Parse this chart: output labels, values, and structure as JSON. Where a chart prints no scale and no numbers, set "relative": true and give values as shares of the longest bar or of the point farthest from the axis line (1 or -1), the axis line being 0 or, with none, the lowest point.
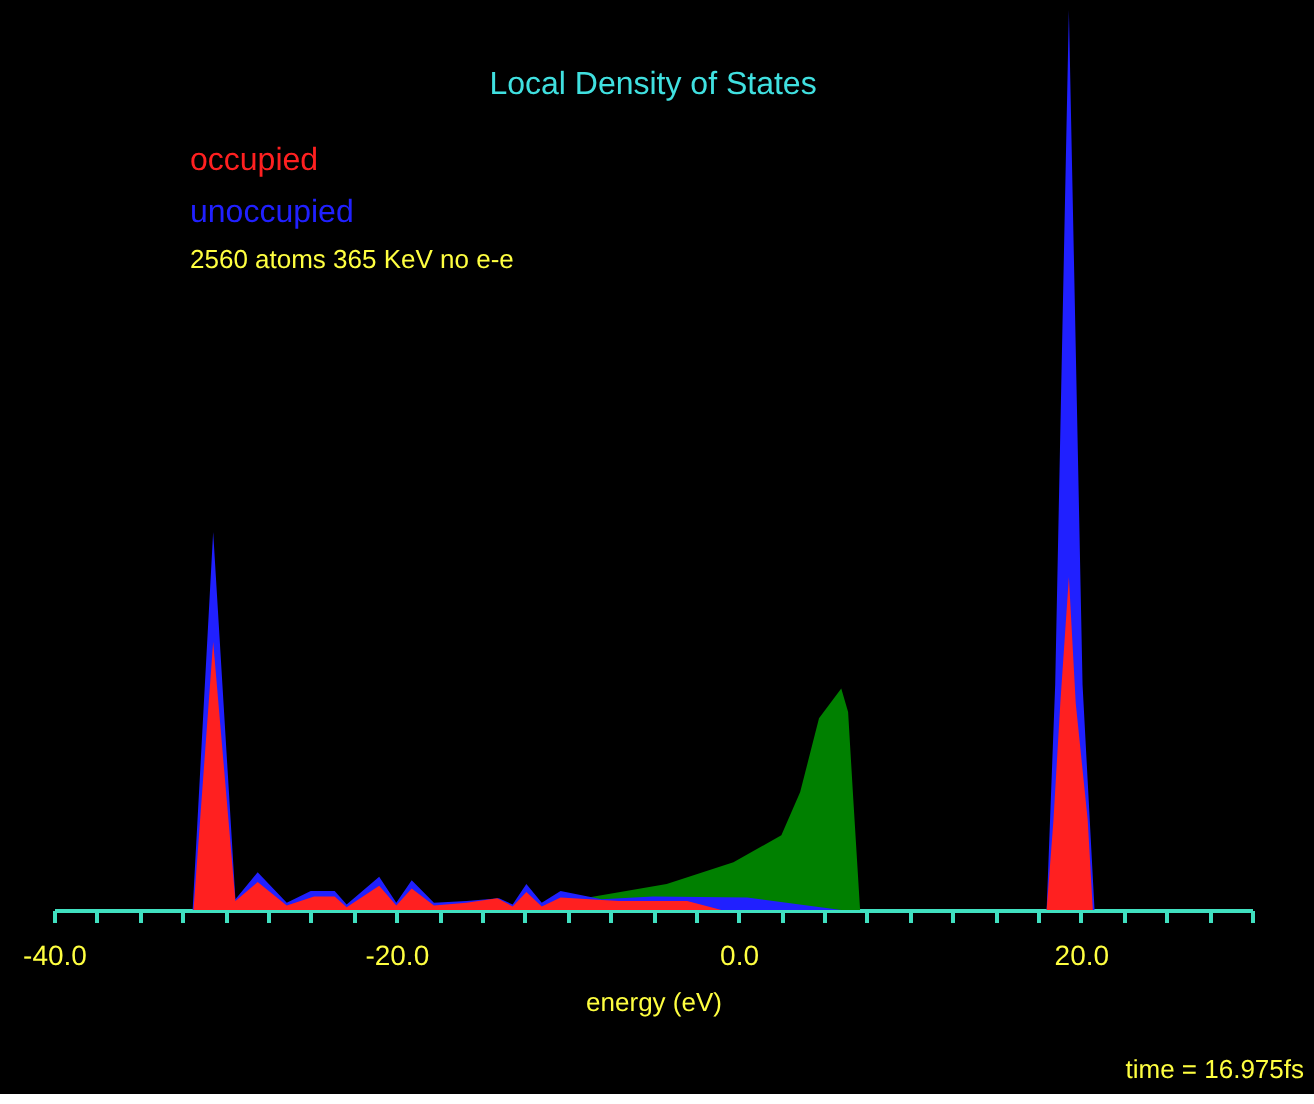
{
  "chart_data": {
    "type": "area",
    "title": "Local Density of States",
    "xlabel": "energy (eV)",
    "relative": true,
    "legend": "top left",
    "grid": false,
    "xlim": [
      -40,
      30
    ],
    "xticks": [
      {
        "value": -40,
        "label": "-40.0"
      },
      {
        "value": -37.5,
        "label": null
      },
      {
        "value": -35,
        "label": null
      },
      {
        "value": -32.5,
        "label": null
      },
      {
        "value": -30,
        "label": null
      },
      {
        "value": -27.5,
        "label": null
      },
      {
        "value": -25,
        "label": null
      },
      {
        "value": -22.5,
        "label": null
      },
      {
        "value": -20,
        "label": "-20.0"
      },
      {
        "value": -17.5,
        "label": null
      },
      {
        "value": -15,
        "label": null
      },
      {
        "value": -12.5,
        "label": null
      },
      {
        "value": -10,
        "label": null
      },
      {
        "value": -7.5,
        "label": null
      },
      {
        "value": -5,
        "label": null
      },
      {
        "value": -2.5,
        "label": null
      },
      {
        "value": 0,
        "label": "0.0"
      },
      {
        "value": 2.5,
        "label": null
      },
      {
        "value": 5,
        "label": null
      },
      {
        "value": 7.5,
        "label": null
      },
      {
        "value": 10,
        "label": null
      },
      {
        "value": 12.5,
        "label": null
      },
      {
        "value": 15,
        "label": null
      },
      {
        "value": 17.5,
        "label": null
      },
      {
        "value": 20,
        "label": "20.0"
      },
      {
        "value": 22.5,
        "label": null
      },
      {
        "value": 25,
        "label": null
      },
      {
        "value": 27.5,
        "label": null
      },
      {
        "value": 30,
        "label": null
      }
    ],
    "annotations": [
      "2560 atoms 365 KeV no e-e",
      "time = 16.975fs"
    ],
    "series": [
      {
        "color": "#008000",
        "x": [
          -13,
          -8.1,
          -4.2,
          -0.3,
          2.5,
          3.6,
          4.7,
          6.0,
          6.4,
          6.7,
          7.1
        ],
        "values": [
          0,
          0.016,
          0.029,
          0.053,
          0.083,
          0.131,
          0.213,
          0.246,
          0.22,
          0.124,
          0
        ]
      },
      {
        "name": "unoccupied",
        "color": "#2020ff",
        "x": [
          -31.9,
          -30.7,
          -29.4,
          -28.1,
          -26.4,
          -25,
          -23.6,
          -22.9,
          -21,
          -20,
          -19.1,
          -17.8,
          -15.9,
          -14,
          -13.2,
          -12.4,
          -11.5,
          -10.4,
          -8,
          -5,
          0.5,
          6.0,
          18.0,
          18.5,
          19.3,
          20.1,
          20.8
        ],
        "values": [
          0,
          0.42,
          0.012,
          0.042,
          0.008,
          0.021,
          0.021,
          0.006,
          0.037,
          0.008,
          0.033,
          0.008,
          0.01,
          0.013,
          0.006,
          0.029,
          0.008,
          0.021,
          0.012,
          0.015,
          0.014,
          0,
          0,
          0.25,
          1,
          0.25,
          0
        ]
      },
      {
        "name": "occupied",
        "color": "#ff2020",
        "x": [
          -31.85,
          -30.7,
          -29.4,
          -28.1,
          -26.4,
          -24.8,
          -23.6,
          -22.9,
          -21,
          -20,
          -19.1,
          -17.8,
          -15.9,
          -14.1,
          -13.2,
          -12.4,
          -11.5,
          -10.4,
          -7,
          -3,
          -1,
          18.0,
          18.4,
          18.8,
          19.3,
          19.7,
          20.4,
          20.7
        ],
        "values": [
          0,
          0.298,
          0.01,
          0.031,
          0.005,
          0.015,
          0.015,
          0.003,
          0.027,
          0.005,
          0.024,
          0.005,
          0.008,
          0.013,
          0.004,
          0.02,
          0.004,
          0.014,
          0.01,
          0.01,
          0,
          0,
          0.1,
          0.23,
          0.37,
          0.23,
          0.1,
          0
        ]
      }
    ]
  }
}
